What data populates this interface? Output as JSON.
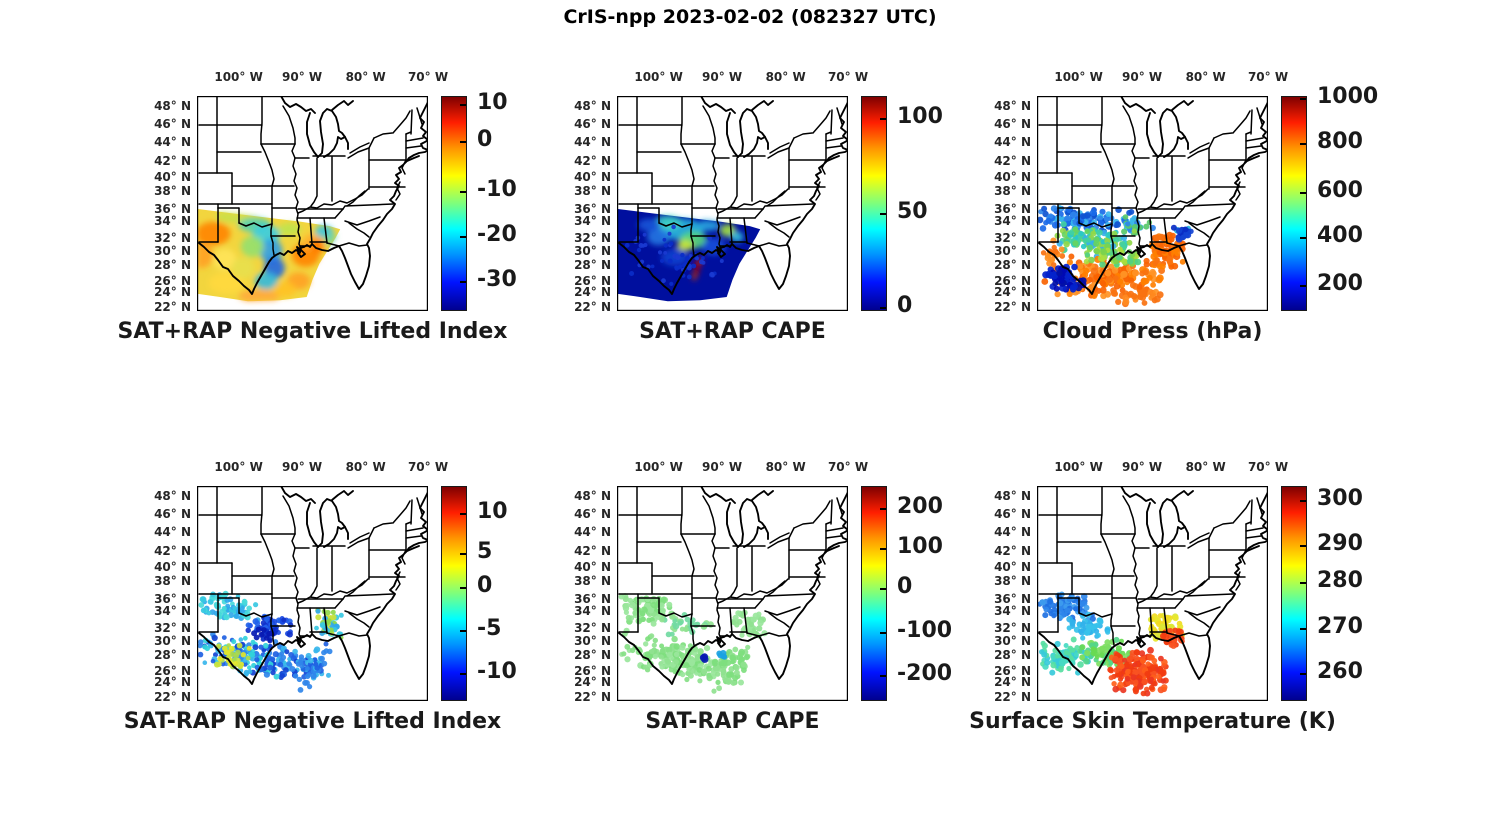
{
  "figure": {
    "title": "CrIS-npp 2023-02-02 (082327 UTC)",
    "background": "#ffffff",
    "text_color": "#262626"
  },
  "axes": {
    "lon_ticks": [
      {
        "label": "100° W",
        "pos": 0.18
      },
      {
        "label": "90° W",
        "pos": 0.455
      },
      {
        "label": "80° W",
        "pos": 0.73
      },
      {
        "label": "70° W",
        "pos": 1.0
      }
    ],
    "lat_ticks": [
      {
        "label": "48° N",
        "pos": 0.051
      },
      {
        "label": "46° N",
        "pos": 0.134
      },
      {
        "label": "44° N",
        "pos": 0.218
      },
      {
        "label": "42° N",
        "pos": 0.306
      },
      {
        "label": "40° N",
        "pos": 0.381
      },
      {
        "label": "38° N",
        "pos": 0.447
      },
      {
        "label": "36° N",
        "pos": 0.528
      },
      {
        "label": "34° N",
        "pos": 0.586
      },
      {
        "label": "32° N",
        "pos": 0.665
      },
      {
        "label": "30° N",
        "pos": 0.726
      },
      {
        "label": "28° N",
        "pos": 0.789
      },
      {
        "label": "26° N",
        "pos": 0.864
      },
      {
        "label": "24° N",
        "pos": 0.917
      },
      {
        "label": "22° N",
        "pos": 0.986
      }
    ],
    "lon_range_deg": [
      -107,
      -65
    ],
    "lat_range_deg": [
      21.7,
      49.4
    ]
  },
  "colormap": {
    "name": "jet",
    "stops": [
      "#7f0000 0%",
      "#ff1e00 12%",
      "#ff9400 24%",
      "#ffff00 37%",
      "#7dff7d 50%",
      "#00ffff 62%",
      "#0093ff 74%",
      "#0013ff 87%",
      "#00008f 100%"
    ]
  },
  "chart_data": [
    {
      "id": "sat-plus-rap-nli",
      "row": 0,
      "col": 0,
      "type": "map_swath",
      "title": "SAT+RAP Negative Lifted Index",
      "colorbar": {
        "ticks": [
          {
            "label": "10",
            "pos": 0.037
          },
          {
            "label": "0",
            "pos": 0.21
          },
          {
            "label": "-10",
            "pos": 0.44
          },
          {
            "label": "-20",
            "pos": 0.65
          },
          {
            "label": "-30",
            "pos": 0.86
          }
        ],
        "approx_range": [
          -35.5,
          11.7
        ]
      },
      "swath": {
        "base_color": "#f2d53e",
        "polygon": [
          [
            0,
            0.525
          ],
          [
            0.15,
            0.545
          ],
          [
            0.3,
            0.565
          ],
          [
            0.45,
            0.585
          ],
          [
            0.575,
            0.605
          ],
          [
            0.62,
            0.62
          ],
          [
            0.6,
            0.66
          ],
          [
            0.565,
            0.72
          ],
          [
            0.53,
            0.78
          ],
          [
            0.5,
            0.855
          ],
          [
            0.475,
            0.935
          ],
          [
            0.36,
            0.95
          ],
          [
            0.22,
            0.955
          ],
          [
            0.1,
            0.935
          ],
          [
            0,
            0.92
          ]
        ],
        "blobs": [
          [
            0.07,
            0.64,
            0.075,
            0.055,
            "#ff8400"
          ],
          [
            0.02,
            0.74,
            0.05,
            0.06,
            "#ffa126"
          ],
          [
            0.17,
            0.56,
            0.09,
            0.03,
            "#c6e14a"
          ],
          [
            0.25,
            0.6,
            0.07,
            0.035,
            "#52d2b2"
          ],
          [
            0.3,
            0.645,
            0.06,
            0.045,
            "#39cde2"
          ],
          [
            0.32,
            0.72,
            0.05,
            0.055,
            "#2d9fe8"
          ],
          [
            0.335,
            0.8,
            0.045,
            0.05,
            "#1e66e4"
          ],
          [
            0.3,
            0.86,
            0.05,
            0.04,
            "#35b9dd"
          ],
          [
            0.24,
            0.7,
            0.05,
            0.05,
            "#93e06e"
          ],
          [
            0.4,
            0.62,
            0.05,
            0.03,
            "#bfe44e"
          ],
          [
            0.47,
            0.74,
            0.06,
            0.055,
            "#ff8400"
          ],
          [
            0.5,
            0.68,
            0.045,
            0.04,
            "#ffb22e"
          ],
          [
            0.52,
            0.7,
            0.03,
            0.035,
            "#ff7a00"
          ],
          [
            0.44,
            0.86,
            0.05,
            0.04,
            "#ffa126"
          ],
          [
            0.55,
            0.63,
            0.04,
            0.03,
            "#3ec6e0"
          ],
          [
            0.585,
            0.67,
            0.03,
            0.03,
            "#6ad6a8"
          ],
          [
            0.13,
            0.87,
            0.08,
            0.05,
            "#ffd93e"
          ],
          [
            0.27,
            0.93,
            0.09,
            0.03,
            "#ffa83a"
          ],
          [
            0.12,
            0.76,
            0.05,
            0.05,
            "#ffe45a"
          ],
          [
            0.38,
            0.9,
            0.05,
            0.035,
            "#ffc226"
          ],
          [
            0.2,
            0.8,
            0.05,
            0.05,
            "#e8e04e"
          ]
        ]
      },
      "clusters": []
    },
    {
      "id": "sat-plus-rap-cape",
      "row": 0,
      "col": 1,
      "type": "map_swath",
      "title": "SAT+RAP CAPE",
      "colorbar": {
        "ticks": [
          {
            "label": "100",
            "pos": 0.102
          },
          {
            "label": "50",
            "pos": 0.545
          },
          {
            "label": "0",
            "pos": 0.98
          }
        ],
        "approx_range": [
          -2,
          112
        ]
      },
      "swath": {
        "base_color": "#000f9e",
        "polygon": [
          [
            0,
            0.525
          ],
          [
            0.15,
            0.545
          ],
          [
            0.3,
            0.565
          ],
          [
            0.45,
            0.585
          ],
          [
            0.575,
            0.605
          ],
          [
            0.62,
            0.62
          ],
          [
            0.6,
            0.66
          ],
          [
            0.565,
            0.72
          ],
          [
            0.53,
            0.78
          ],
          [
            0.5,
            0.855
          ],
          [
            0.475,
            0.935
          ],
          [
            0.36,
            0.95
          ],
          [
            0.22,
            0.955
          ],
          [
            0.1,
            0.935
          ],
          [
            0,
            0.92
          ]
        ],
        "blobs": [
          [
            0.28,
            0.62,
            0.1,
            0.05,
            "#28b6db"
          ],
          [
            0.22,
            0.59,
            0.06,
            0.035,
            "#3fd4c4"
          ],
          [
            0.33,
            0.67,
            0.06,
            0.04,
            "#57d87a"
          ],
          [
            0.295,
            0.695,
            0.035,
            0.025,
            "#cce832"
          ],
          [
            0.48,
            0.625,
            0.035,
            0.03,
            "#a5e23e"
          ],
          [
            0.52,
            0.655,
            0.027,
            0.025,
            "#35c4da"
          ],
          [
            0.18,
            0.655,
            0.05,
            0.04,
            "#2277e2"
          ],
          [
            0.4,
            0.6,
            0.045,
            0.028,
            "#2aa5e0"
          ],
          [
            0.14,
            0.6,
            0.05,
            0.03,
            "#1a55d8"
          ],
          [
            0.25,
            0.75,
            0.06,
            0.04,
            "#1340cf"
          ],
          [
            0.42,
            0.7,
            0.05,
            0.04,
            "#1b50da"
          ],
          [
            0.345,
            0.8,
            0.012,
            0.035,
            "#a80000"
          ],
          [
            0.36,
            0.77,
            0.009,
            0.02,
            "#d41c00"
          ],
          [
            0.335,
            0.84,
            0.01,
            0.018,
            "#cc3300"
          ]
        ]
      },
      "clusters": [
        [
          60,
          0.25,
          0.75,
          0.2,
          0.12,
          [
            "#0a2cc8",
            "#1a3ad0"
          ],
          2.2,
          0
        ]
      ]
    },
    {
      "id": "cloud-press",
      "row": 0,
      "col": 2,
      "type": "map_scatter",
      "title": "Cloud Press (hPa)",
      "colorbar": {
        "ticks": [
          {
            "label": "1000",
            "pos": 0.01
          },
          {
            "label": "800",
            "pos": 0.218
          },
          {
            "label": "600",
            "pos": 0.447
          },
          {
            "label": "400",
            "pos": 0.656
          },
          {
            "label": "200",
            "pos": 0.879
          }
        ],
        "approx_range": [
          90,
          1010
        ]
      },
      "swath": null,
      "clusters": [
        [
          120,
          0.2,
          0.575,
          0.17,
          0.045,
          [
            "#1a6ae8",
            "#2f86ea",
            "#0f52d0",
            "#38b6ec"
          ],
          3.0,
          0.06
        ],
        [
          30,
          0.43,
          0.605,
          0.07,
          0.035,
          [
            "#2f86ea",
            "#38b6ec",
            "#58c86a"
          ],
          3.0,
          0
        ],
        [
          120,
          0.25,
          0.675,
          0.15,
          0.055,
          [
            "#28c8c8",
            "#41d0a2",
            "#66d45f",
            "#90d84a",
            "#38b0e8"
          ],
          3.0,
          0.1
        ],
        [
          170,
          0.3,
          0.845,
          0.2,
          0.075,
          [
            "#f87210",
            "#ff7f00",
            "#f96302",
            "#ff9224"
          ],
          3.3,
          0
        ],
        [
          60,
          0.115,
          0.85,
          0.07,
          0.05,
          [
            "#0009b4",
            "#0423cc",
            "#0210a6"
          ],
          3.3,
          0
        ],
        [
          75,
          0.565,
          0.72,
          0.055,
          0.078,
          [
            "#f87210",
            "#ff7f00",
            "#f96302"
          ],
          3.2,
          0
        ],
        [
          20,
          0.63,
          0.635,
          0.032,
          0.032,
          [
            "#1242d2",
            "#22b2dc",
            "#0a2cc4"
          ],
          3.0,
          0
        ],
        [
          28,
          0.45,
          0.935,
          0.1,
          0.03,
          [
            "#f87210",
            "#ff8a20"
          ],
          3.2,
          0
        ],
        [
          45,
          0.33,
          0.75,
          0.11,
          0.04,
          [
            "#7cd24d",
            "#aade3e",
            "#52d082"
          ],
          3.0,
          0.1
        ],
        [
          20,
          0.06,
          0.73,
          0.05,
          0.05,
          [
            "#f87210",
            "#ff9224"
          ],
          3.0,
          0
        ]
      ]
    },
    {
      "id": "sat-minus-rap-nli",
      "row": 1,
      "col": 0,
      "type": "map_scatter",
      "title": "SAT-RAP Negative Lifted Index",
      "colorbar": {
        "ticks": [
          {
            "label": "10",
            "pos": 0.125
          },
          {
            "label": "5",
            "pos": 0.31
          },
          {
            "label": "0",
            "pos": 0.47
          },
          {
            "label": "-5",
            "pos": 0.67
          },
          {
            "label": "-10",
            "pos": 0.87
          }
        ],
        "approx_range": [
          -13.5,
          13.4
        ]
      },
      "swath": null,
      "clusters": [
        [
          80,
          0.14,
          0.565,
          0.095,
          0.05,
          [
            "#37c8e2",
            "#31a8ea",
            "#47dada"
          ],
          2.7,
          0.1
        ],
        [
          50,
          0.32,
          0.645,
          0.09,
          0.05,
          [
            "#1132ca",
            "#1a4ae2",
            "#2262ea"
          ],
          2.8,
          0
        ],
        [
          180,
          0.27,
          0.8,
          0.22,
          0.07,
          [
            "#2f86ea",
            "#2061e2",
            "#38b6ec",
            "#31d2da",
            "#1242d2"
          ],
          2.7,
          0.18
        ],
        [
          32,
          0.15,
          0.795,
          0.06,
          0.05,
          [
            "#cae23c",
            "#aada4c",
            "#e2e62a"
          ],
          2.7,
          0
        ],
        [
          60,
          0.5,
          0.845,
          0.065,
          0.068,
          [
            "#2061e2",
            "#2f86ea",
            "#38b6ec"
          ],
          2.7,
          -0.5
        ],
        [
          48,
          0.575,
          0.645,
          0.058,
          0.05,
          [
            "#37c8e2",
            "#90d84a",
            "#cae23c",
            "#31a8ea"
          ],
          2.7,
          0
        ],
        [
          18,
          0.295,
          0.69,
          0.04,
          0.035,
          [
            "#0819b2",
            "#0a2cc8"
          ],
          2.8,
          0
        ]
      ]
    },
    {
      "id": "sat-minus-rap-cape",
      "row": 1,
      "col": 1,
      "type": "map_scatter",
      "title": "SAT-RAP CAPE",
      "colorbar": {
        "ticks": [
          {
            "label": "200",
            "pos": 0.1
          },
          {
            "label": "100",
            "pos": 0.29
          },
          {
            "label": "0",
            "pos": 0.475
          },
          {
            "label": "-100",
            "pos": 0.68
          },
          {
            "label": "-200",
            "pos": 0.88
          }
        ],
        "approx_range": [
          -262,
          251
        ]
      },
      "swath": null,
      "clusters": [
        [
          85,
          0.14,
          0.575,
          0.095,
          0.055,
          [
            "#90e290",
            "#7ede7e",
            "#9ae69c"
          ],
          2.9,
          0.1
        ],
        [
          32,
          0.3,
          0.645,
          0.09,
          0.05,
          [
            "#90e290",
            "#71daa2"
          ],
          2.9,
          0
        ],
        [
          185,
          0.27,
          0.805,
          0.22,
          0.07,
          [
            "#90e290",
            "#7ede7e",
            "#87e087",
            "#9ae69c"
          ],
          2.9,
          0.18
        ],
        [
          55,
          0.5,
          0.845,
          0.065,
          0.065,
          [
            "#90e290",
            "#7ede7e"
          ],
          2.9,
          -0.5
        ],
        [
          42,
          0.575,
          0.645,
          0.058,
          0.05,
          [
            "#90e290",
            "#9ae69c"
          ],
          2.9,
          0
        ],
        [
          3,
          0.38,
          0.8,
          0.012,
          0.012,
          [
            "#0819b2"
          ],
          3.3,
          0
        ],
        [
          5,
          0.465,
          0.785,
          0.018,
          0.015,
          [
            "#1aa2e2",
            "#37c8e2"
          ],
          2.9,
          0
        ]
      ]
    },
    {
      "id": "surface-skin-temp",
      "row": 1,
      "col": 2,
      "type": "map_scatter",
      "title": "Surface Skin Temperature (K)",
      "colorbar": {
        "ticks": [
          {
            "label": "300",
            "pos": 0.065
          },
          {
            "label": "290",
            "pos": 0.275
          },
          {
            "label": "280",
            "pos": 0.445
          },
          {
            "label": "270",
            "pos": 0.66
          },
          {
            "label": "260",
            "pos": 0.87
          }
        ],
        "approx_range": [
          253,
          303
        ]
      },
      "swath": null,
      "clusters": [
        [
          80,
          0.13,
          0.565,
          0.09,
          0.05,
          [
            "#2f86ea",
            "#2071e2",
            "#3d9cee"
          ],
          2.9,
          0.1
        ],
        [
          45,
          0.22,
          0.655,
          0.075,
          0.045,
          [
            "#37c2ea",
            "#31b2ea"
          ],
          2.9,
          0.1
        ],
        [
          85,
          0.13,
          0.795,
          0.09,
          0.065,
          [
            "#47dac2",
            "#57dea2",
            "#37cada"
          ],
          2.9,
          0
        ],
        [
          75,
          0.3,
          0.775,
          0.09,
          0.05,
          [
            "#68da51",
            "#7ede62",
            "#52d68a"
          ],
          2.9,
          0.1
        ],
        [
          210,
          0.44,
          0.865,
          0.1,
          0.078,
          [
            "#f23c10",
            "#f85222",
            "#ea3622",
            "#ff5e1a"
          ],
          3.0,
          0
        ],
        [
          58,
          0.555,
          0.655,
          0.062,
          0.05,
          [
            "#e8e62c",
            "#dae636",
            "#f2da22"
          ],
          2.9,
          0
        ],
        [
          32,
          0.585,
          0.715,
          0.035,
          0.045,
          [
            "#f85222",
            "#f23c10"
          ],
          2.9,
          0
        ]
      ]
    }
  ]
}
